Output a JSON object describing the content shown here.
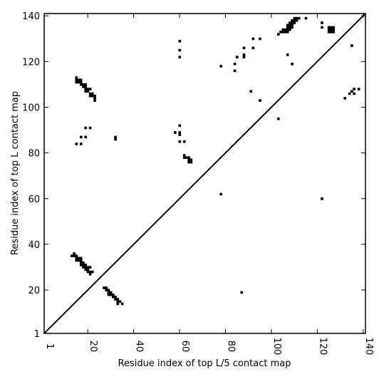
{
  "chart_data": {
    "type": "scatter",
    "xlabel": "Residue index of top L/5 contact map",
    "ylabel": "Residue index of top L contact map",
    "xlim": [
      1,
      141
    ],
    "ylim": [
      1,
      141
    ],
    "x_ticks": [
      1,
      20,
      40,
      60,
      80,
      100,
      120,
      140
    ],
    "y_ticks": [
      1,
      20,
      40,
      60,
      80,
      100,
      120,
      140
    ],
    "diagonal": true,
    "grid": false,
    "series": [
      {
        "marker": "square",
        "color": "#000000",
        "points": [
          [
            15,
            113
          ],
          [
            15,
            112
          ],
          [
            15,
            111
          ],
          [
            16,
            112
          ],
          [
            16,
            111
          ],
          [
            17,
            112
          ],
          [
            17,
            111
          ],
          [
            17,
            110
          ],
          [
            18,
            110
          ],
          [
            18,
            109
          ],
          [
            19,
            110
          ],
          [
            19,
            109
          ],
          [
            19,
            108
          ],
          [
            19,
            107
          ],
          [
            20,
            108
          ],
          [
            20,
            107
          ],
          [
            21,
            108
          ],
          [
            21,
            106
          ],
          [
            21,
            105
          ],
          [
            22,
            106
          ],
          [
            22,
            105
          ],
          [
            23,
            105
          ],
          [
            23,
            104
          ],
          [
            23,
            103
          ],
          [
            15,
            84
          ],
          [
            17,
            84
          ],
          [
            17,
            87
          ],
          [
            19,
            87
          ],
          [
            19,
            91
          ],
          [
            21,
            91
          ],
          [
            32,
            87
          ],
          [
            32,
            86
          ],
          [
            14,
            36
          ],
          [
            14,
            35
          ],
          [
            15,
            35
          ],
          [
            15,
            34
          ],
          [
            15,
            33
          ],
          [
            16,
            34
          ],
          [
            16,
            33
          ],
          [
            17,
            34
          ],
          [
            17,
            33
          ],
          [
            17,
            32
          ],
          [
            17,
            31
          ],
          [
            18,
            32
          ],
          [
            18,
            31
          ],
          [
            18,
            30
          ],
          [
            19,
            31
          ],
          [
            19,
            30
          ],
          [
            19,
            29
          ],
          [
            20,
            30
          ],
          [
            20,
            29
          ],
          [
            20,
            28
          ],
          [
            21,
            30
          ],
          [
            21,
            28
          ],
          [
            21,
            27
          ],
          [
            22,
            28
          ],
          [
            13,
            35
          ],
          [
            27,
            21
          ],
          [
            28,
            21
          ],
          [
            28,
            20
          ],
          [
            29,
            20
          ],
          [
            29,
            19
          ],
          [
            29,
            18
          ],
          [
            30,
            19
          ],
          [
            30,
            18
          ],
          [
            31,
            18
          ],
          [
            31,
            17
          ],
          [
            32,
            17
          ],
          [
            32,
            16
          ],
          [
            33,
            16
          ],
          [
            33,
            15
          ],
          [
            33,
            14
          ],
          [
            34,
            15
          ],
          [
            35,
            14
          ],
          [
            60,
            129
          ],
          [
            60,
            125
          ],
          [
            60,
            122
          ],
          [
            60,
            92
          ],
          [
            60,
            89
          ],
          [
            60,
            88
          ],
          [
            60,
            85
          ],
          [
            58,
            89
          ],
          [
            62,
            85
          ],
          [
            62,
            79
          ],
          [
            62,
            78
          ],
          [
            63,
            78
          ],
          [
            64,
            78
          ],
          [
            64,
            77
          ],
          [
            64,
            76
          ],
          [
            65,
            77
          ],
          [
            65,
            76
          ],
          [
            78,
            62
          ],
          [
            78,
            118
          ],
          [
            84,
            119
          ],
          [
            84,
            116
          ],
          [
            85,
            122
          ],
          [
            88,
            126
          ],
          [
            88,
            123
          ],
          [
            88,
            122
          ],
          [
            87,
            19
          ],
          [
            91,
            107
          ],
          [
            92,
            130
          ],
          [
            92,
            126
          ],
          [
            95,
            130
          ],
          [
            95,
            103
          ],
          [
            103,
            95
          ],
          [
            103,
            132
          ],
          [
            104,
            133
          ],
          [
            105,
            134
          ],
          [
            105,
            133
          ],
          [
            106,
            134
          ],
          [
            106,
            133
          ],
          [
            107,
            136
          ],
          [
            107,
            135
          ],
          [
            107,
            134
          ],
          [
            107,
            133
          ],
          [
            108,
            135
          ],
          [
            108,
            134
          ],
          [
            108,
            137
          ],
          [
            108,
            136
          ],
          [
            109,
            137
          ],
          [
            109,
            136
          ],
          [
            109,
            138
          ],
          [
            110,
            139
          ],
          [
            110,
            138
          ],
          [
            110,
            137
          ],
          [
            111,
            139
          ],
          [
            111,
            138
          ],
          [
            112,
            139
          ],
          [
            109,
            135
          ],
          [
            107,
            123
          ],
          [
            109,
            119
          ],
          [
            115,
            139
          ],
          [
            122,
            137
          ],
          [
            122,
            135
          ],
          [
            125,
            135
          ],
          [
            125,
            134
          ],
          [
            125,
            133
          ],
          [
            126,
            135
          ],
          [
            126,
            134
          ],
          [
            126,
            133
          ],
          [
            127,
            135
          ],
          [
            127,
            134
          ],
          [
            127,
            133
          ],
          [
            122,
            60
          ],
          [
            132,
            104
          ],
          [
            134,
            106
          ],
          [
            135,
            127
          ],
          [
            135,
            107
          ],
          [
            136,
            108
          ],
          [
            136,
            106
          ],
          [
            138,
            108
          ]
        ]
      }
    ]
  }
}
